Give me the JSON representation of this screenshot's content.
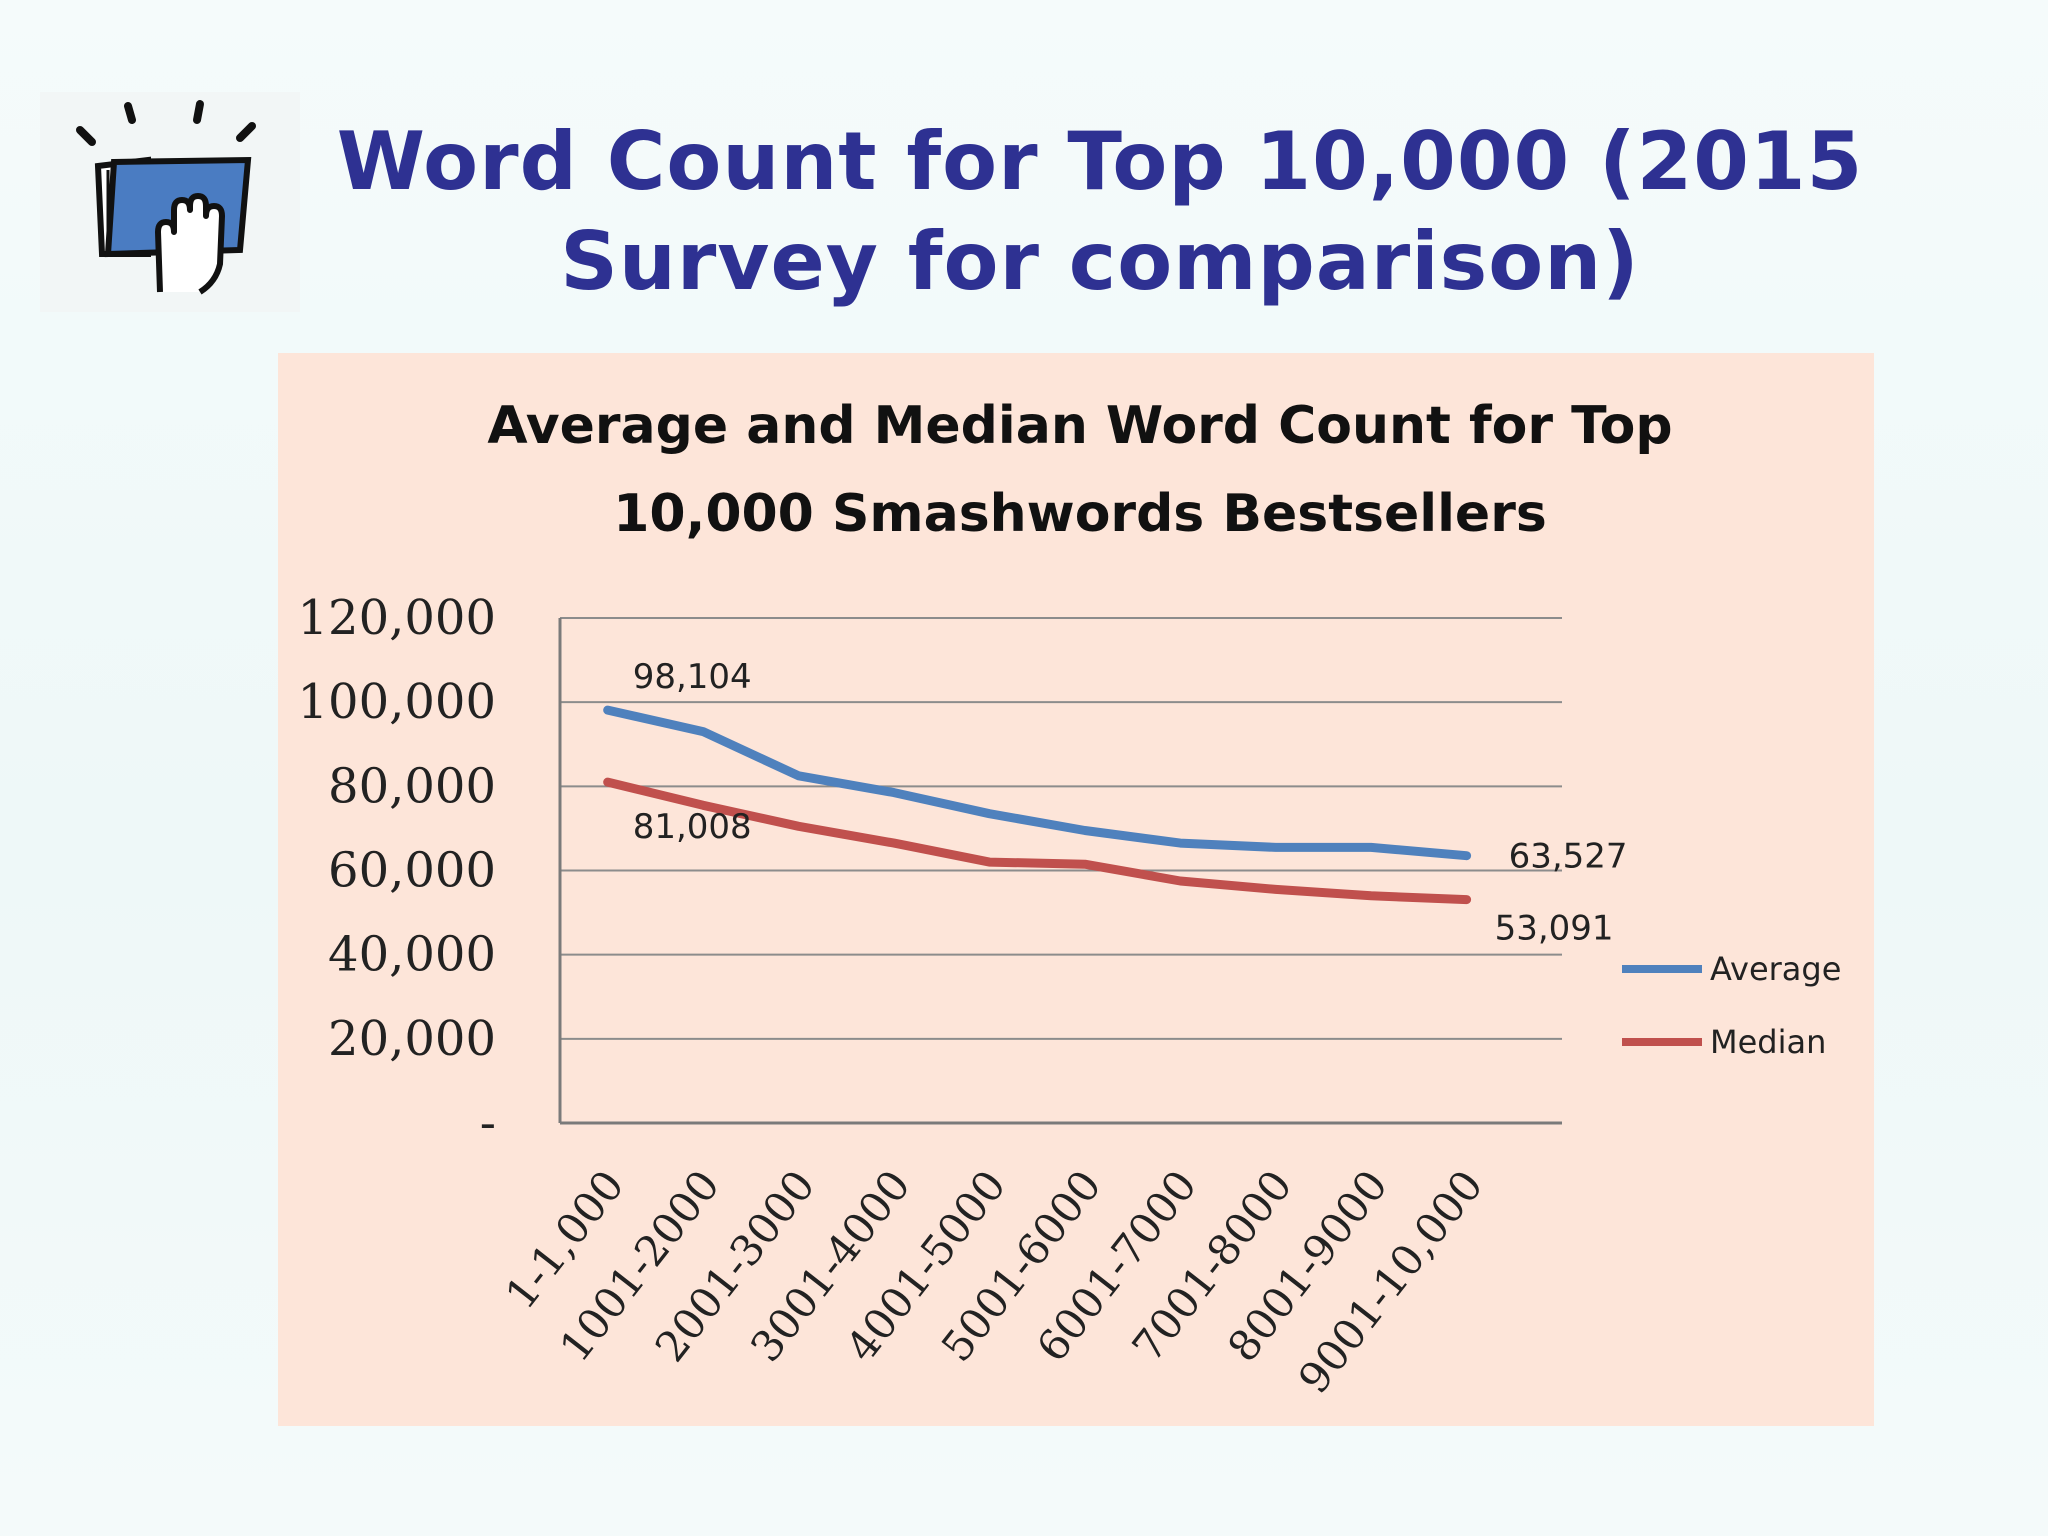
{
  "slide": {
    "title": "Word Count for Top 10,000 (2015 Survey for comparison)",
    "logo_icon": "hand-on-book-icon",
    "colors": {
      "title": "#2e3192",
      "panel": "#fde5d9",
      "average": "#4f81bd",
      "median": "#c0504d"
    }
  },
  "chart_data": {
    "type": "line",
    "title": "Average and Median Word Count for Top 10,000 Smashwords Bestsellers",
    "title_lines": [
      "Average and Median Word Count for Top",
      "10,000 Smashwords Bestsellers"
    ],
    "categories": [
      "1-1,000",
      "1001-2000",
      "2001-3000",
      "3001-4000",
      "4001-5000",
      "5001-6000",
      "6001-7000",
      "7001-8000",
      "8001-9000",
      "9001-10,000"
    ],
    "series": [
      {
        "name": "Average",
        "color": "#4f81bd",
        "values": [
          98104,
          93000,
          82500,
          78500,
          73500,
          69500,
          66500,
          65500,
          65500,
          63527
        ]
      },
      {
        "name": "Median",
        "color": "#c0504d",
        "values": [
          81008,
          75500,
          70500,
          66500,
          62000,
          61500,
          57500,
          55500,
          54000,
          53091
        ]
      }
    ],
    "data_labels": [
      {
        "series": "Average",
        "index": 0,
        "text": "98,104"
      },
      {
        "series": "Median",
        "index": 0,
        "text": "81,008"
      },
      {
        "series": "Average",
        "index": 9,
        "text": "63,527"
      },
      {
        "series": "Median",
        "index": 9,
        "text": "53,091"
      }
    ],
    "ylim": [
      0,
      120000
    ],
    "yticks": [
      0,
      20000,
      40000,
      60000,
      80000,
      100000,
      120000
    ],
    "ytick_labels": [
      "-",
      "20,000",
      "40,000",
      "60,000",
      "80,000",
      "100,000",
      "120,000"
    ],
    "xlabel": "",
    "ylabel": "",
    "grid": true,
    "legend": "right"
  }
}
